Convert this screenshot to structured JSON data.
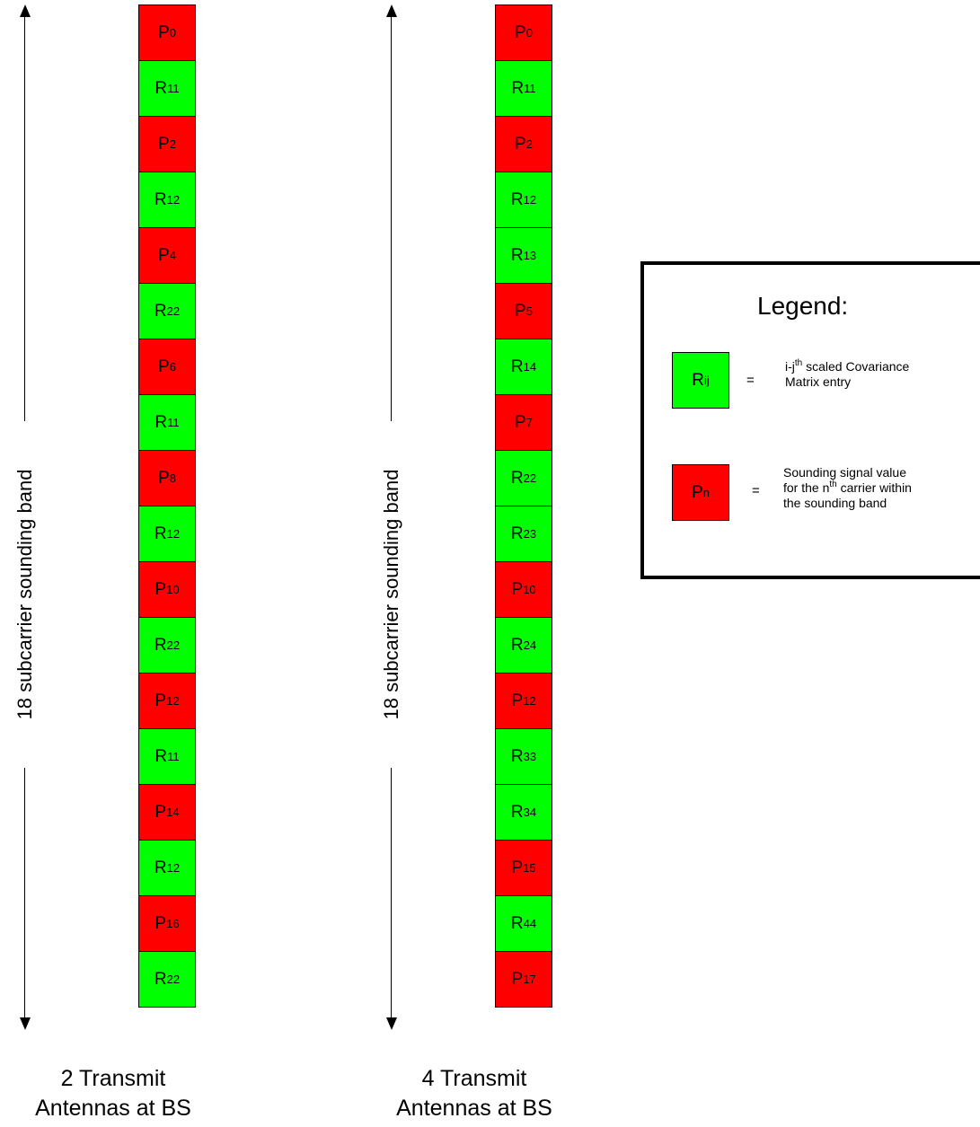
{
  "colors": {
    "pilot": "#ff0000",
    "covariance": "#00ff00"
  },
  "axis_label": "18 subcarrier sounding band",
  "columns": [
    {
      "caption_line1": "2 Transmit",
      "caption_line2": "Antennas at BS",
      "cells": [
        {
          "type": "P",
          "base": "P",
          "sub": "0"
        },
        {
          "type": "R",
          "base": "R",
          "sub": "11"
        },
        {
          "type": "P",
          "base": "P",
          "sub": "2"
        },
        {
          "type": "R",
          "base": "R",
          "sub": "12"
        },
        {
          "type": "P",
          "base": "P",
          "sub": "4"
        },
        {
          "type": "R",
          "base": "R",
          "sub": "22"
        },
        {
          "type": "P",
          "base": "P",
          "sub": "6"
        },
        {
          "type": "R",
          "base": "R",
          "sub": "11"
        },
        {
          "type": "P",
          "base": "P",
          "sub": "8"
        },
        {
          "type": "R",
          "base": "R",
          "sub": "12"
        },
        {
          "type": "P",
          "base": "P",
          "sub": "10"
        },
        {
          "type": "R",
          "base": "R",
          "sub": "22"
        },
        {
          "type": "P",
          "base": "P",
          "sub": "12"
        },
        {
          "type": "R",
          "base": "R",
          "sub": "11"
        },
        {
          "type": "P",
          "base": "P",
          "sub": "14"
        },
        {
          "type": "R",
          "base": "R",
          "sub": "12"
        },
        {
          "type": "P",
          "base": "P",
          "sub": "16"
        },
        {
          "type": "R",
          "base": "R",
          "sub": "22"
        }
      ]
    },
    {
      "caption_line1": "4 Transmit",
      "caption_line2": "Antennas at BS",
      "cells": [
        {
          "type": "P",
          "base": "P",
          "sub": "0"
        },
        {
          "type": "R",
          "base": "R",
          "sub": "11"
        },
        {
          "type": "P",
          "base": "P",
          "sub": "2"
        },
        {
          "type": "R",
          "base": "R",
          "sub": "12"
        },
        {
          "type": "R",
          "base": "R",
          "sub": "13"
        },
        {
          "type": "P",
          "base": "P",
          "sub": "5"
        },
        {
          "type": "R",
          "base": "R",
          "sub": "14"
        },
        {
          "type": "P",
          "base": "P",
          "sub": "7"
        },
        {
          "type": "R",
          "base": "R",
          "sub": "22"
        },
        {
          "type": "R",
          "base": "R",
          "sub": "23"
        },
        {
          "type": "P",
          "base": "P",
          "sub": "10"
        },
        {
          "type": "R",
          "base": "R",
          "sub": "24"
        },
        {
          "type": "P",
          "base": "P",
          "sub": "12"
        },
        {
          "type": "R",
          "base": "R",
          "sub": "33"
        },
        {
          "type": "R",
          "base": "R",
          "sub": "34"
        },
        {
          "type": "P",
          "base": "P",
          "sub": "15"
        },
        {
          "type": "R",
          "base": "R",
          "sub": "44"
        },
        {
          "type": "P",
          "base": "P",
          "sub": "17"
        }
      ]
    }
  ],
  "legend": {
    "title": "Legend:",
    "covariance": {
      "symbol": "R",
      "symbol_sub": "ij",
      "equals": "=",
      "desc_prefix": "i-j",
      "desc_sup": "th",
      "desc_rest": " scaled Covariance",
      "desc_line2": "Matrix entry"
    },
    "pilot": {
      "symbol": "P",
      "symbol_sub": "n",
      "equals": "=",
      "desc_line1": "Sounding signal value",
      "desc_line2_prefix": "for the n",
      "desc_line2_sup": "th",
      "desc_line2_rest": " carrier within",
      "desc_line3": "the sounding band"
    }
  }
}
